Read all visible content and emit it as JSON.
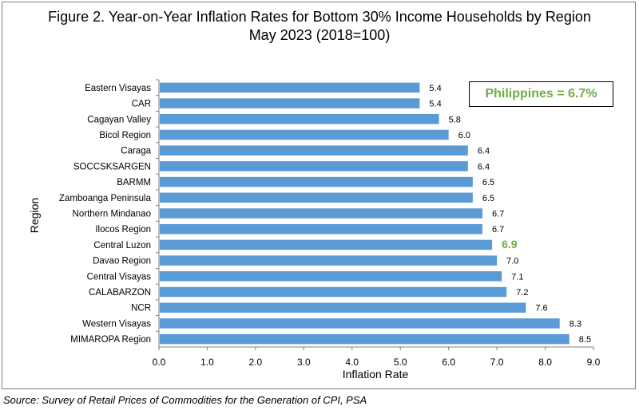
{
  "title_line1": "Figure 2. Year-on-Year Inflation Rates for Bottom 30% Income Households by Region",
  "title_line2": "May 2023 (2018=100)",
  "source": "Source: Survey of Retail Prices of Commodities for the Generation of CPI, PSA",
  "callout": "Philippines = 6.7%",
  "colors": {
    "bar": "#5b9bd5",
    "highlight": "#70ad47"
  },
  "chart_data": {
    "type": "bar",
    "orientation": "horizontal",
    "xlabel": "Inflation Rate",
    "ylabel": "Region",
    "xlim": [
      0,
      9
    ],
    "xticks": [
      "0.0",
      "1.0",
      "2.0",
      "3.0",
      "4.0",
      "5.0",
      "6.0",
      "7.0",
      "8.0",
      "9.0"
    ],
    "grid": false,
    "highlight_category": "Central Luzon",
    "categories": [
      "Eastern Visayas",
      "CAR",
      "Cagayan Valley",
      "Bicol Region",
      "Caraga",
      "SOCCSKSARGEN",
      "BARMM",
      "Zamboanga Peninsula",
      "Northern Mindanao",
      "Ilocos Region",
      "Central Luzon",
      "Davao Region",
      "Central Visayas",
      "CALABARZON",
      "NCR",
      "Western Visayas",
      "MIMAROPA Region"
    ],
    "values": [
      5.4,
      5.4,
      5.8,
      6.0,
      6.4,
      6.4,
      6.5,
      6.5,
      6.7,
      6.7,
      6.9,
      7.0,
      7.1,
      7.2,
      7.6,
      8.3,
      8.5
    ],
    "value_labels": [
      "5.4",
      "5.4",
      "5.8",
      "6.0",
      "6.4",
      "6.4",
      "6.5",
      "6.5",
      "6.7",
      "6.7",
      "6.9",
      "7.0",
      "7.1",
      "7.2",
      "7.6",
      "8.3",
      "8.5"
    ]
  }
}
